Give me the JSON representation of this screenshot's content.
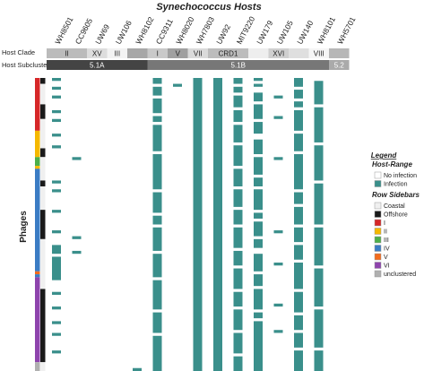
{
  "chart_data": {
    "type": "heatmap",
    "title": "Synechococcus Hosts",
    "y_axis_label": "Phages",
    "hosts": [
      "WH8501",
      "CC9605",
      "UW69",
      "UW106",
      "WH8102",
      "CC9311",
      "WH8020",
      "WH7803",
      "UW92",
      "MIT9220",
      "UW179",
      "UW105",
      "UW140",
      "WH8101",
      "WH5701"
    ],
    "host_clade_label": "Host Clade",
    "host_clade": [
      {
        "label": "II",
        "start": 0,
        "end": 2,
        "color": "#bbbbbb"
      },
      {
        "label": "XV",
        "start": 2,
        "end": 3,
        "color": "#dddddd"
      },
      {
        "label": "III",
        "start": 3,
        "end": 4,
        "color": "#f3f3f3"
      },
      {
        "label": "",
        "start": 4,
        "end": 5,
        "color": "#a7a7a7"
      },
      {
        "label": "I",
        "start": 5,
        "end": 6,
        "color": "#c9c9c9"
      },
      {
        "label": "V",
        "start": 6,
        "end": 7,
        "color": "#a0a0a0"
      },
      {
        "label": "VII",
        "start": 7,
        "end": 8,
        "color": "#dadada"
      },
      {
        "label": "CRD1",
        "start": 8,
        "end": 10,
        "color": "#bcbcbc"
      },
      {
        "label": "",
        "start": 10,
        "end": 11,
        "color": "#eeeeee"
      },
      {
        "label": "XVI",
        "start": 11,
        "end": 12,
        "color": "#cfcfcf"
      },
      {
        "label": "",
        "start": 12,
        "end": 13,
        "color": "#dfdfdf"
      },
      {
        "label": "VIII",
        "start": 13,
        "end": 14,
        "color": "#f6f6f6"
      },
      {
        "label": "",
        "start": 14,
        "end": 15,
        "color": "#b7b7b7"
      }
    ],
    "host_subcluster_label": "Host Subcluster",
    "host_subcluster": [
      {
        "label": "5.1A",
        "start": 0,
        "end": 5,
        "color": "#444444"
      },
      {
        "label": "5.1B",
        "start": 5,
        "end": 14,
        "color": "#777777"
      },
      {
        "label": "5.2",
        "start": 14,
        "end": 15,
        "color": "#aaaaaa"
      }
    ],
    "n_phages": 100,
    "phage_sidebar_env": [
      {
        "start": 0,
        "end": 2,
        "value": "Offshore"
      },
      {
        "start": 2,
        "end": 9,
        "value": "Coastal"
      },
      {
        "start": 9,
        "end": 14,
        "value": "Offshore"
      },
      {
        "start": 14,
        "end": 24,
        "value": "Coastal"
      },
      {
        "start": 24,
        "end": 27,
        "value": "Offshore"
      },
      {
        "start": 27,
        "end": 35,
        "value": "Coastal"
      },
      {
        "start": 35,
        "end": 37,
        "value": "Offshore"
      },
      {
        "start": 37,
        "end": 45,
        "value": "Coastal"
      },
      {
        "start": 45,
        "end": 55,
        "value": "Offshore"
      },
      {
        "start": 55,
        "end": 72,
        "value": "Coastal"
      },
      {
        "start": 72,
        "end": 97,
        "value": "Offshore"
      },
      {
        "start": 97,
        "end": 100,
        "value": "Coastal"
      }
    ],
    "phage_sidebar_clade": [
      {
        "start": 0,
        "end": 18,
        "value": "I"
      },
      {
        "start": 18,
        "end": 27,
        "value": "II"
      },
      {
        "start": 27,
        "end": 30,
        "value": "III"
      },
      {
        "start": 30,
        "end": 31,
        "value": "II"
      },
      {
        "start": 31,
        "end": 66,
        "value": "IV"
      },
      {
        "start": 66,
        "end": 67,
        "value": "V"
      },
      {
        "start": 67,
        "end": 68,
        "value": "IV"
      },
      {
        "start": 68,
        "end": 97,
        "value": "VI"
      },
      {
        "start": 97,
        "end": 100,
        "value": "unclustered"
      }
    ],
    "infection_runs": [
      [
        [
          0,
          1
        ],
        [
          3,
          4
        ],
        [
          6,
          7
        ],
        [
          11,
          12
        ],
        [
          14,
          15
        ],
        [
          19,
          20
        ],
        [
          23,
          24
        ],
        [
          35,
          36
        ],
        [
          38,
          39
        ],
        [
          45,
          46
        ],
        [
          52,
          53
        ],
        [
          57,
          60
        ],
        [
          61,
          69
        ],
        [
          73,
          74
        ],
        [
          78,
          79
        ],
        [
          83,
          84
        ],
        [
          87,
          88
        ],
        [
          93,
          94
        ]
      ],
      [
        [
          27,
          28
        ],
        [
          54,
          55
        ],
        [
          59,
          60
        ]
      ],
      [],
      [],
      [
        [
          99,
          100
        ]
      ],
      [
        [
          0,
          2
        ],
        [
          3,
          6
        ],
        [
          7,
          12
        ],
        [
          13,
          15
        ],
        [
          16,
          25
        ],
        [
          26,
          38
        ],
        [
          39,
          46
        ],
        [
          47,
          50
        ],
        [
          51,
          59
        ],
        [
          60,
          68
        ],
        [
          69,
          79
        ],
        [
          80,
          87
        ],
        [
          88,
          100
        ]
      ],
      [
        [
          2,
          3
        ]
      ],
      [
        [
          0,
          100
        ]
      ],
      [
        [
          0,
          100
        ]
      ],
      [
        [
          0,
          2
        ],
        [
          3,
          5
        ],
        [
          6,
          10
        ],
        [
          11,
          15
        ],
        [
          16,
          22
        ],
        [
          23,
          30
        ],
        [
          31,
          37
        ],
        [
          38,
          44
        ],
        [
          45,
          50
        ],
        [
          51,
          58
        ],
        [
          59,
          64
        ],
        [
          65,
          72
        ],
        [
          73,
          78
        ],
        [
          79,
          86
        ],
        [
          87,
          94
        ],
        [
          95,
          100
        ]
      ],
      [
        [
          0,
          1
        ],
        [
          2,
          3
        ],
        [
          5,
          8
        ],
        [
          9,
          14
        ],
        [
          15,
          19
        ],
        [
          21,
          26
        ],
        [
          27,
          33
        ],
        [
          34,
          37
        ],
        [
          38,
          45
        ],
        [
          46,
          48
        ],
        [
          49,
          54
        ],
        [
          55,
          58
        ],
        [
          60,
          66
        ],
        [
          67,
          71
        ],
        [
          72,
          79
        ],
        [
          80,
          82
        ],
        [
          83,
          100
        ]
      ],
      [
        [
          6,
          7
        ],
        [
          13,
          14
        ],
        [
          27,
          28
        ],
        [
          52,
          53
        ],
        [
          63,
          64
        ],
        [
          77,
          78
        ],
        [
          86,
          87
        ]
      ],
      [
        [
          0,
          3
        ],
        [
          4,
          7
        ],
        [
          8,
          10
        ],
        [
          11,
          18
        ],
        [
          19,
          25
        ],
        [
          26,
          38
        ],
        [
          39,
          43
        ],
        [
          44,
          50
        ],
        [
          51,
          56
        ],
        [
          57,
          62
        ],
        [
          63,
          72
        ],
        [
          73,
          80
        ],
        [
          81,
          86
        ],
        [
          87,
          92
        ],
        [
          93,
          100
        ]
      ],
      [
        [
          1,
          9
        ],
        [
          10,
          22
        ],
        [
          23,
          35
        ],
        [
          36,
          50
        ],
        [
          51,
          64
        ],
        [
          65,
          78
        ],
        [
          79,
          92
        ],
        [
          93,
          100
        ]
      ],
      []
    ],
    "legend": {
      "title": "Legend",
      "host_range_title": "Host-Range",
      "host_range": [
        {
          "label": "No infection",
          "color": "#ffffff"
        },
        {
          "label": "Infection",
          "color": "#3a8f8b"
        }
      ],
      "row_sidebars_title": "Row Sidebars",
      "row_sidebars": [
        {
          "label": "Coastal",
          "color": "#f0f0f0"
        },
        {
          "label": "Offshore",
          "color": "#1a1a1a"
        },
        {
          "label": "I",
          "color": "#d62728"
        },
        {
          "label": "II",
          "color": "#f5b800"
        },
        {
          "label": "III",
          "color": "#4daf4a"
        },
        {
          "label": "IV",
          "color": "#3b7cc4"
        },
        {
          "label": "V",
          "color": "#f26b1d"
        },
        {
          "label": "VI",
          "color": "#8e44ad"
        },
        {
          "label": "unclustered",
          "color": "#b0b0b0"
        }
      ]
    },
    "colors": {
      "infection": "#3a8f8b",
      "no_infection": "#ffffff"
    }
  }
}
